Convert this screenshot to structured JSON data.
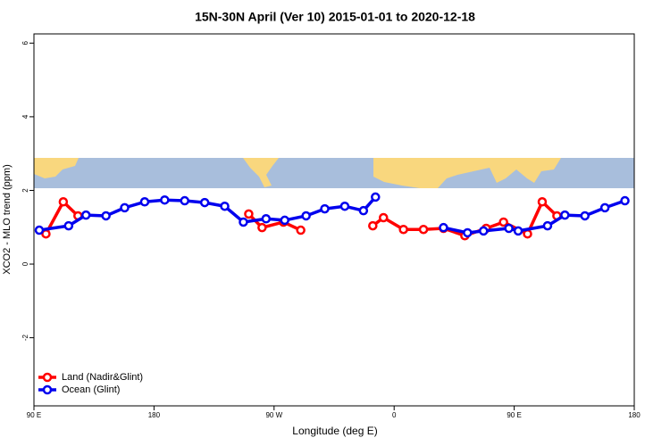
{
  "chart_data": {
    "type": "line",
    "title": "15N-30N April (Ver 10)   2015-01-01 to 2020-12-18",
    "x_label": "Longitude (deg E)",
    "y_label": "XCO2 - MLO trend (ppm)",
    "xlim": [
      90,
      540
    ],
    "xticks": [
      {
        "value": 90,
        "label": "90 E"
      },
      {
        "value": 180,
        "label": "180"
      },
      {
        "value": 270,
        "label": "90 W"
      },
      {
        "value": 360,
        "label": "0"
      },
      {
        "value": 450,
        "label": "90 E"
      },
      {
        "value": 540,
        "label": "180"
      }
    ],
    "ylim": [
      -3.85,
      6.25
    ],
    "yticks": [
      -2,
      0,
      2,
      4,
      6
    ],
    "legend": "bottom-left",
    "series": [
      {
        "name": "Land (Nadir&Glint)",
        "color": "#ff0000",
        "x": [
          99,
          112,
          123,
          null,
          251,
          261,
          277,
          290,
          null,
          344,
          352,
          367,
          382,
          397,
          413,
          429,
          442,
          460,
          471,
          482
        ],
        "values": [
          0.82,
          1.69,
          1.31,
          null,
          1.36,
          0.99,
          1.14,
          0.92,
          null,
          1.04,
          1.26,
          0.94,
          0.94,
          0.97,
          0.77,
          0.97,
          1.14,
          0.82,
          1.69,
          1.31
        ]
      },
      {
        "name": "Ocean (Glint)",
        "color": "#0000ee",
        "x": [
          94,
          116,
          129,
          144,
          158,
          173,
          188,
          203,
          218,
          233,
          247,
          264,
          278,
          294,
          308,
          323,
          337,
          346,
          null,
          397,
          415,
          427,
          446,
          453,
          475,
          488,
          503,
          518,
          533
        ],
        "values": [
          0.92,
          1.04,
          1.33,
          1.31,
          1.53,
          1.69,
          1.74,
          1.72,
          1.67,
          1.57,
          1.14,
          1.23,
          1.19,
          1.31,
          1.5,
          1.57,
          1.45,
          1.82,
          null,
          0.99,
          0.85,
          0.9,
          0.97,
          0.9,
          1.04,
          1.33,
          1.31,
          1.53,
          1.72
        ]
      }
    ]
  }
}
